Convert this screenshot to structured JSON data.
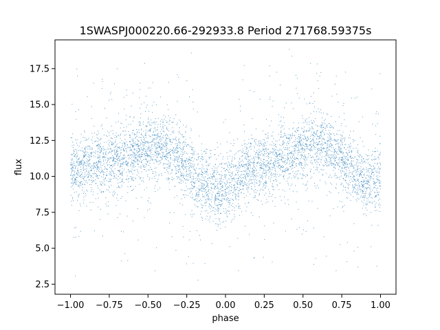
{
  "chart_data": {
    "type": "scatter",
    "title": "1SWASPJ000220.66-292933.8 Period 271768.59375s",
    "xlabel": "phase",
    "ylabel": "flux",
    "xlim": [
      -1.1,
      1.1
    ],
    "ylim": [
      1.8,
      19.5
    ],
    "xticks": [
      -1.0,
      -0.75,
      -0.5,
      -0.25,
      0.0,
      0.25,
      0.5,
      0.75,
      1.0
    ],
    "xtick_labels": [
      "−1.00",
      "−0.75",
      "−0.50",
      "−0.25",
      "0.00",
      "0.25",
      "0.50",
      "0.75",
      "1.00"
    ],
    "yticks": [
      2.5,
      5.0,
      7.5,
      10.0,
      12.5,
      15.0,
      17.5
    ],
    "ytick_labels": [
      "2.5",
      "5.0",
      "7.5",
      "10.0",
      "12.5",
      "15.0",
      "17.5"
    ],
    "grid": false,
    "marker_color": "#1f77b4",
    "phase_range": [
      -1.0,
      1.0
    ],
    "trend": {
      "phase": [
        -1.0,
        -0.9,
        -0.75,
        -0.6,
        -0.45,
        -0.35,
        -0.25,
        -0.15,
        -0.05,
        0.05,
        0.15,
        0.3,
        0.4,
        0.5,
        0.6,
        0.7,
        0.8,
        0.9,
        1.0
      ],
      "flux": [
        10.3,
        10.8,
        11.1,
        11.6,
        12.1,
        11.7,
        10.6,
        9.5,
        8.8,
        9.6,
        10.6,
        11.0,
        11.3,
        11.9,
        12.3,
        11.8,
        10.7,
        9.6,
        9.8
      ]
    },
    "scatter_std": 1.1,
    "flux_range": [
      2.6,
      19.0
    ]
  }
}
